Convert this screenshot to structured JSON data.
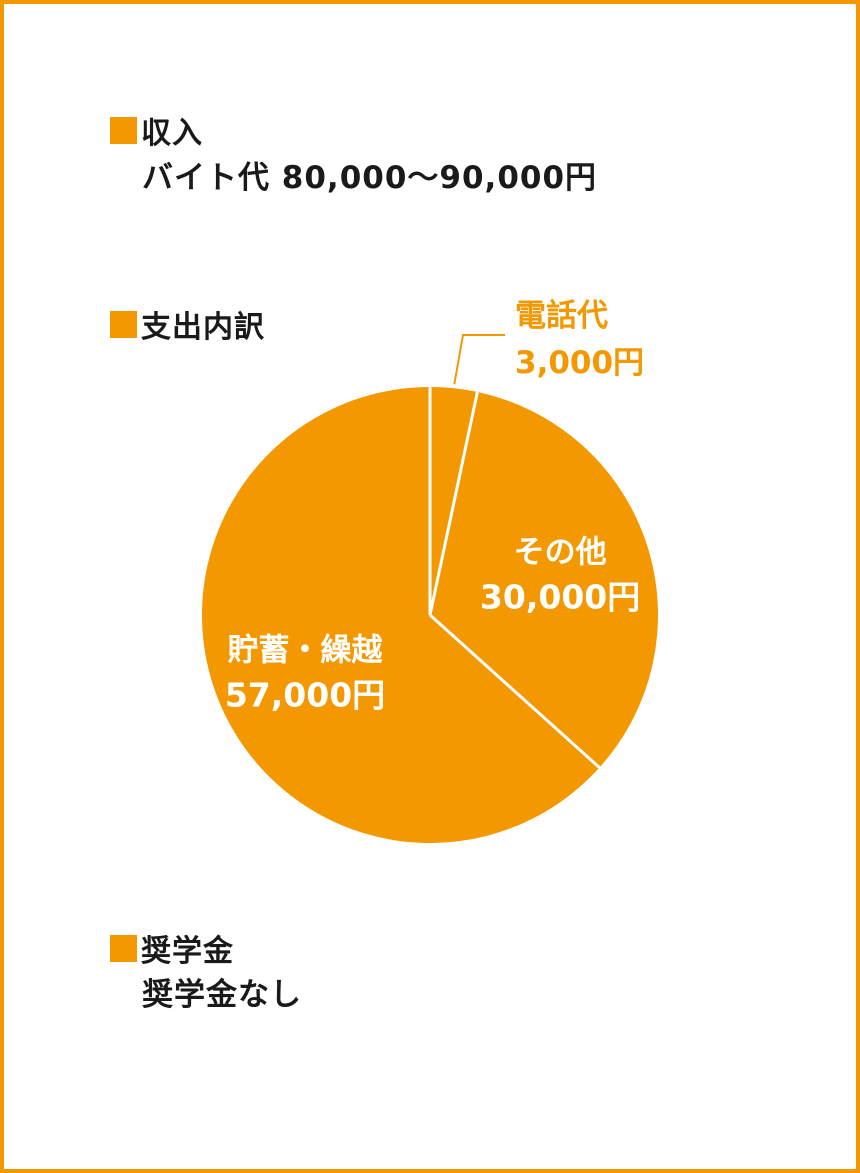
{
  "sections": {
    "income": {
      "heading": "収入",
      "detail": "バイト代 80,000～90,000円"
    },
    "expenses": {
      "heading": "支出内訳"
    },
    "scholarship": {
      "heading": "奨学金",
      "detail": "奨学金なし"
    }
  },
  "colors": {
    "accent": "#f39800",
    "text": "#1a1a1a",
    "separator": "#ffffff"
  },
  "chart_data": {
    "type": "pie",
    "title": "",
    "slices": [
      {
        "label": "電話代",
        "value_label": "3,000円",
        "value": 3000,
        "label_position": "outside"
      },
      {
        "label": "その他",
        "value_label": "30,000円",
        "value": 30000,
        "label_position": "inside"
      },
      {
        "label": "貯蓄・繰越",
        "value_label": "57,000円",
        "value": 57000,
        "label_position": "inside"
      }
    ],
    "start_angle": "12 o'clock",
    "direction": "clockwise"
  }
}
